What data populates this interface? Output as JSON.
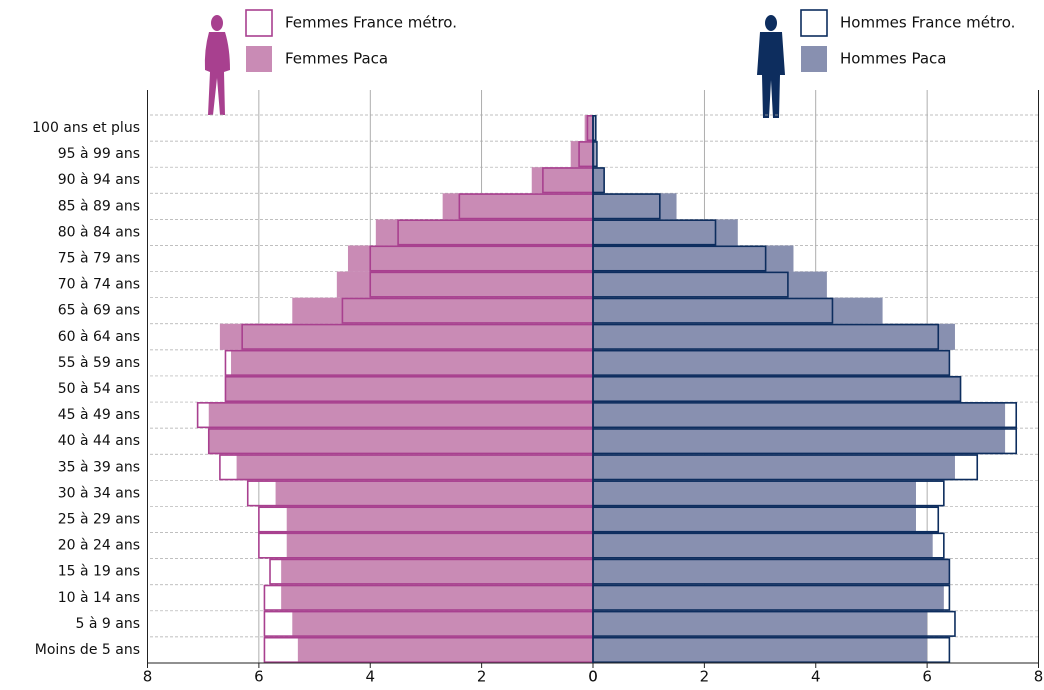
{
  "chart_data": {
    "type": "pyramid",
    "categories": [
      "100 ans et plus",
      "95 à 99 ans",
      "90 à 94 ans",
      "85 à 89 ans",
      "80 à 84 ans",
      "75 à 79 ans",
      "70 à 74 ans",
      "65 à 69 ans",
      "60 à 64 ans",
      "55 à 59 ans",
      "50 à 54 ans",
      "45 à 49 ans",
      "40 à 44 ans",
      "35 à 39 ans",
      "30 à 34 ans",
      "25 à 29 ans",
      "20 à 24 ans",
      "15 à 19 ans",
      "10 à 14 ans",
      "5 à 9 ans",
      "Moins de 5 ans"
    ],
    "series": [
      {
        "name": "Femmes Paca",
        "color": "#c98bb5",
        "style": "filled",
        "direction": "left",
        "values": [
          0.15,
          0.4,
          1.1,
          2.7,
          3.9,
          4.4,
          4.6,
          5.4,
          6.7,
          6.5,
          6.6,
          6.9,
          6.9,
          6.4,
          5.7,
          5.5,
          5.5,
          5.6,
          5.6,
          5.4,
          5.3
        ]
      },
      {
        "name": "Femmes France métro.",
        "color": "#a8408f",
        "style": "outline",
        "direction": "left",
        "values": [
          0.1,
          0.25,
          0.9,
          2.4,
          3.5,
          4.0,
          4.0,
          4.5,
          6.3,
          6.6,
          6.6,
          7.1,
          6.9,
          6.7,
          6.2,
          6.0,
          6.0,
          5.8,
          5.9,
          5.9,
          5.9
        ]
      },
      {
        "name": "Hommes Paca",
        "color": "#8890b0",
        "style": "filled",
        "direction": "right",
        "values": [
          0.03,
          0.05,
          0.2,
          1.5,
          2.6,
          3.6,
          4.2,
          5.2,
          6.5,
          6.4,
          6.6,
          7.4,
          7.4,
          6.5,
          5.8,
          5.8,
          6.1,
          6.4,
          6.3,
          6.0,
          6.0
        ]
      },
      {
        "name": "Hommes France métro.",
        "color": "#0d2d5e",
        "style": "outline",
        "direction": "right",
        "values": [
          0.05,
          0.07,
          0.2,
          1.2,
          2.2,
          3.1,
          3.5,
          4.3,
          6.2,
          6.4,
          6.6,
          7.6,
          7.6,
          6.9,
          6.3,
          6.2,
          6.3,
          6.4,
          6.4,
          6.5,
          6.4
        ]
      }
    ],
    "xlim": [
      0,
      8
    ],
    "xticks": [
      0,
      2,
      4,
      6,
      8
    ],
    "grid": true
  }
}
